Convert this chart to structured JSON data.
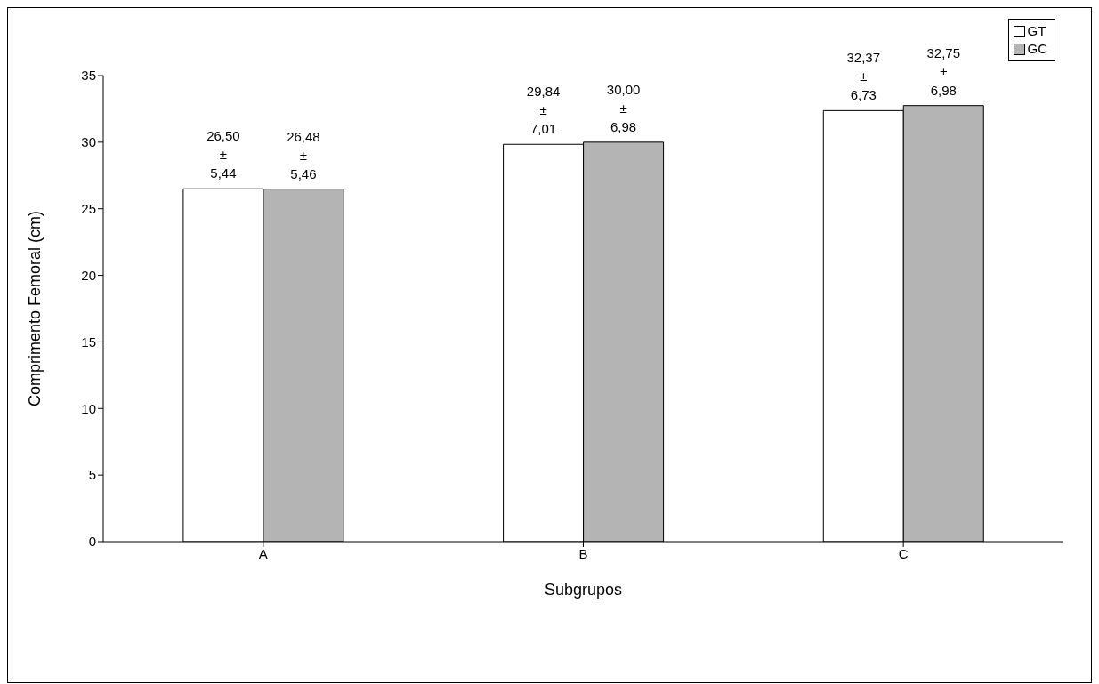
{
  "chart_data": {
    "type": "bar",
    "xlabel": "Subgrupos",
    "ylabel": "Comprimento Femoral  (cm)",
    "categories": [
      "A",
      "B",
      "C"
    ],
    "series": [
      {
        "name": "GT",
        "color": "#ffffff",
        "values": [
          26.5,
          29.84,
          32.37
        ],
        "value_labels": [
          "26,50\n±\n5,44",
          "29,84\n±\n7,01",
          "32,37\n±\n6,73"
        ]
      },
      {
        "name": "GC",
        "color": "#b4b4b4",
        "values": [
          26.48,
          30.0,
          32.75
        ],
        "value_labels": [
          "26,48\n±\n5,46",
          "30,00\n±\n6,98",
          "32,75\n±\n6,98"
        ]
      }
    ],
    "ylim": [
      0,
      35
    ],
    "yticks": [
      0,
      5,
      10,
      15,
      20,
      25,
      30,
      35
    ],
    "grid": false,
    "legend": "top right"
  }
}
